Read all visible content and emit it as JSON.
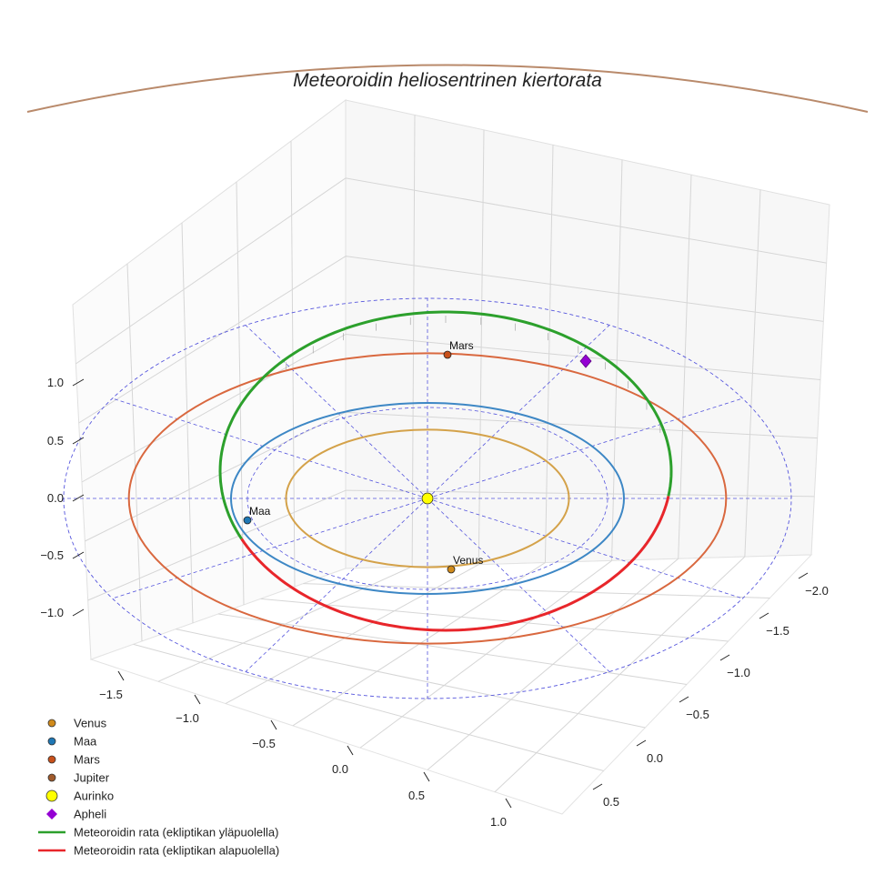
{
  "chart_data": {
    "type": "scatter",
    "projection": "3d",
    "title": "Meteoroidin heliosentrinen kiertorata",
    "xlabel": "",
    "ylabel": "",
    "zlabel": "",
    "x_ticks": [
      "−1.5",
      "−1.0",
      "−0.5",
      "0.0",
      "0.5",
      "1.0"
    ],
    "y_ticks": [
      "−2.0",
      "−1.5",
      "−1.0",
      "−0.5",
      "0.0",
      "0.5"
    ],
    "z_ticks": [
      "−1.0",
      "−0.5",
      "0.0",
      "0.5",
      "1.0"
    ],
    "grid": true,
    "legend_placement": "lower-left",
    "legend": [
      {
        "label": "Venus",
        "marker": "circle",
        "color": "#d08a1a"
      },
      {
        "label": "Maa",
        "marker": "circle",
        "color": "#1f77b4"
      },
      {
        "label": "Mars",
        "marker": "circle",
        "color": "#c8501a"
      },
      {
        "label": "Jupiter",
        "marker": "circle",
        "color": "#a05a2c"
      },
      {
        "label": "Aurinko",
        "marker": "circle",
        "color": "#ffff00"
      },
      {
        "label": "Apheli",
        "marker": "diamond",
        "color": "#9400d3"
      },
      {
        "label": "Meteoroidin rata (ekliptikan yläpuolella)",
        "marker": "line",
        "color": "#2ca02c"
      },
      {
        "label": "Meteoroidin rata (ekliptikan alapuolella)",
        "marker": "line",
        "color": "#e8262b"
      }
    ],
    "orbits": [
      {
        "name": "Venus",
        "radius_au": 0.72,
        "color": "#d4a24a"
      },
      {
        "name": "Maa",
        "radius_au": 1.0,
        "color": "#3d87c5"
      },
      {
        "name": "Mars",
        "radius_au": 1.52,
        "color": "#d9683f"
      },
      {
        "name": "Jupiter",
        "radius_au": 5.2,
        "color": "#b98a6b"
      }
    ],
    "bodies": [
      {
        "name": "Venus",
        "label": "Venus",
        "color": "#d08a1a"
      },
      {
        "name": "Maa",
        "label": "Maa",
        "color": "#1f77b4"
      },
      {
        "name": "Mars",
        "label": "Mars",
        "color": "#c8501a"
      },
      {
        "name": "Aurinko",
        "label": "",
        "color": "#ffff00"
      }
    ],
    "aphelion": {
      "color": "#9400d3"
    },
    "meteoroid": {
      "above_color": "#2ca02c",
      "below_color": "#e8262b",
      "approx_perihelion_au": 0.95,
      "approx_aphelion_au": 1.6
    },
    "reference_grid_color": "#5555dd"
  }
}
